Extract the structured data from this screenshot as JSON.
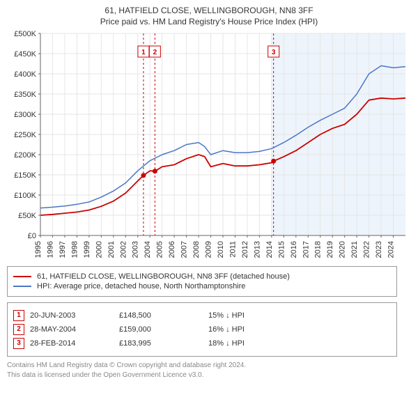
{
  "title_main": "61, HATFIELD CLOSE, WELLINGBOROUGH, NN8 3FF",
  "title_sub": "Price paid vs. HM Land Registry's House Price Index (HPI)",
  "chart": {
    "type": "line",
    "background_color": "#ffffff",
    "shaded_region": {
      "from_year": 2014,
      "to_year": 2025,
      "color": "#eef4fb"
    },
    "ylim": [
      0,
      500000
    ],
    "ytick_step": 50000,
    "yticks": [
      "£0",
      "£50K",
      "£100K",
      "£150K",
      "£200K",
      "£250K",
      "£300K",
      "£350K",
      "£400K",
      "£450K",
      "£500K"
    ],
    "xlim": [
      1995,
      2025
    ],
    "xticks": [
      1995,
      1996,
      1997,
      1998,
      1999,
      2000,
      2001,
      2002,
      2003,
      2004,
      2005,
      2006,
      2007,
      2008,
      2009,
      2010,
      2011,
      2012,
      2013,
      2014,
      2015,
      2016,
      2017,
      2018,
      2019,
      2020,
      2021,
      2022,
      2023,
      2024
    ],
    "grid_color": "#e6e6e6",
    "axis_color": "#666666",
    "series": [
      {
        "name": "property",
        "label": "61, HATFIELD CLOSE, WELLINGBOROUGH, NN8 3FF (detached house)",
        "color": "#cc0000",
        "line_width": 1.8,
        "points": [
          [
            1995,
            50000
          ],
          [
            1996,
            52000
          ],
          [
            1997,
            55000
          ],
          [
            1998,
            58000
          ],
          [
            1999,
            63000
          ],
          [
            2000,
            72000
          ],
          [
            2001,
            85000
          ],
          [
            2002,
            105000
          ],
          [
            2003,
            135000
          ],
          [
            2003.47,
            148500
          ],
          [
            2004,
            160000
          ],
          [
            2004.41,
            159000
          ],
          [
            2005,
            170000
          ],
          [
            2006,
            175000
          ],
          [
            2007,
            190000
          ],
          [
            2008,
            200000
          ],
          [
            2008.5,
            195000
          ],
          [
            2009,
            170000
          ],
          [
            2010,
            178000
          ],
          [
            2011,
            172000
          ],
          [
            2012,
            172000
          ],
          [
            2013,
            175000
          ],
          [
            2014,
            180000
          ],
          [
            2014.16,
            183995
          ],
          [
            2015,
            195000
          ],
          [
            2016,
            210000
          ],
          [
            2017,
            230000
          ],
          [
            2018,
            250000
          ],
          [
            2019,
            265000
          ],
          [
            2020,
            275000
          ],
          [
            2021,
            300000
          ],
          [
            2022,
            335000
          ],
          [
            2023,
            340000
          ],
          [
            2024,
            338000
          ],
          [
            2025,
            340000
          ]
        ]
      },
      {
        "name": "hpi",
        "label": "HPI: Average price, detached house, North Northamptonshire",
        "color": "#4a76c7",
        "line_width": 1.5,
        "points": [
          [
            1995,
            68000
          ],
          [
            1996,
            70000
          ],
          [
            1997,
            73000
          ],
          [
            1998,
            77000
          ],
          [
            1999,
            83000
          ],
          [
            2000,
            95000
          ],
          [
            2001,
            110000
          ],
          [
            2002,
            130000
          ],
          [
            2003,
            160000
          ],
          [
            2004,
            185000
          ],
          [
            2005,
            200000
          ],
          [
            2006,
            210000
          ],
          [
            2007,
            225000
          ],
          [
            2008,
            230000
          ],
          [
            2008.5,
            220000
          ],
          [
            2009,
            200000
          ],
          [
            2010,
            210000
          ],
          [
            2011,
            205000
          ],
          [
            2012,
            205000
          ],
          [
            2013,
            208000
          ],
          [
            2014,
            215000
          ],
          [
            2015,
            230000
          ],
          [
            2016,
            248000
          ],
          [
            2017,
            268000
          ],
          [
            2018,
            285000
          ],
          [
            2019,
            300000
          ],
          [
            2020,
            315000
          ],
          [
            2021,
            350000
          ],
          [
            2022,
            400000
          ],
          [
            2023,
            420000
          ],
          [
            2024,
            415000
          ],
          [
            2025,
            418000
          ]
        ]
      }
    ],
    "event_markers": [
      {
        "label": "1",
        "x": 2003.47,
        "y": 148500
      },
      {
        "label": "2",
        "x": 2004.41,
        "y": 159000
      },
      {
        "label": "3",
        "x": 2014.16,
        "y": 183995
      }
    ],
    "marker_line_color": "#cc0000",
    "marker_line_dash": "3,3",
    "dot_radius": 3.5,
    "label_fontsize": 11
  },
  "legend": {
    "property": "61, HATFIELD CLOSE, WELLINGBOROUGH, NN8 3FF (detached house)",
    "hpi": "HPI: Average price, detached house, North Northamptonshire"
  },
  "sales": [
    {
      "marker": "1",
      "date": "20-JUN-2003",
      "price": "£148,500",
      "hpi": "15% ↓ HPI"
    },
    {
      "marker": "2",
      "date": "28-MAY-2004",
      "price": "£159,000",
      "hpi": "16% ↓ HPI"
    },
    {
      "marker": "3",
      "date": "28-FEB-2014",
      "price": "£183,995",
      "hpi": "18% ↓ HPI"
    }
  ],
  "license_line1": "Contains HM Land Registry data © Crown copyright and database right 2024.",
  "license_line2": "This data is licensed under the Open Government Licence v3.0."
}
